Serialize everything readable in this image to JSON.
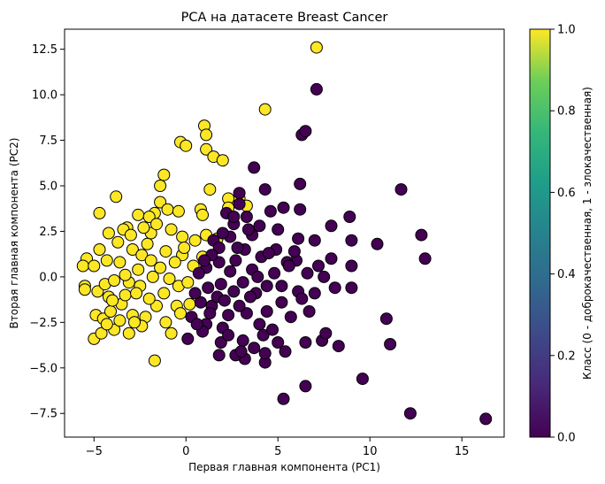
{
  "chart_data": {
    "type": "scatter",
    "title": "PCA на датасете Breast Cancer",
    "xlabel": "Первая главная компонента (PC1)",
    "ylabel": "Вторая главная компонента (PC2)",
    "xlim": [
      -6.6,
      17.3
    ],
    "ylim": [
      -8.8,
      13.6
    ],
    "xticks": [
      -5,
      0,
      5,
      10,
      15
    ],
    "yticks": [
      -7.5,
      -5.0,
      -2.5,
      0.0,
      2.5,
      5.0,
      7.5,
      10.0,
      12.5
    ],
    "grid": false,
    "colormap": "viridis",
    "colorbar": {
      "label": "Класс (0 - доброкачественная, 1 - злокачественная)",
      "range": [
        0.0,
        1.0
      ],
      "ticks": [
        0.0,
        0.2,
        0.4,
        0.6,
        0.8,
        1.0
      ]
    },
    "colors": {
      "class_0": "#440154",
      "class_1": "#fde725",
      "marker_edge": "#000000"
    },
    "series": [
      {
        "class_value": 1,
        "points": [
          [
            7.1,
            12.6
          ],
          [
            4.3,
            9.2
          ],
          [
            1.0,
            8.3
          ],
          [
            1.1,
            7.8
          ],
          [
            -0.3,
            7.4
          ],
          [
            0.0,
            7.2
          ],
          [
            1.1,
            7.0
          ],
          [
            1.5,
            6.6
          ],
          [
            2.0,
            6.4
          ],
          [
            -1.2,
            5.6
          ],
          [
            1.3,
            4.8
          ],
          [
            -1.4,
            5.0
          ],
          [
            2.9,
            4.3
          ],
          [
            2.3,
            4.3
          ],
          [
            -3.8,
            4.4
          ],
          [
            -1.4,
            4.1
          ],
          [
            2.3,
            3.8
          ],
          [
            3.3,
            3.9
          ],
          [
            -4.7,
            3.5
          ],
          [
            -2.6,
            3.4
          ],
          [
            -1.7,
            3.5
          ],
          [
            -1.0,
            3.7
          ],
          [
            -0.4,
            3.6
          ],
          [
            0.8,
            3.7
          ],
          [
            0.9,
            3.4
          ],
          [
            -2.0,
            3.3
          ],
          [
            -3.2,
            2.7
          ],
          [
            -4.2,
            2.4
          ],
          [
            -5.4,
            1.0
          ],
          [
            -4.7,
            1.5
          ],
          [
            -3.4,
            2.6
          ],
          [
            -1.9,
            2.4
          ],
          [
            -0.2,
            2.2
          ],
          [
            1.1,
            2.3
          ],
          [
            1.7,
            2.1
          ],
          [
            -5.6,
            0.6
          ],
          [
            -5.0,
            0.6
          ],
          [
            -4.3,
            0.9
          ],
          [
            -3.6,
            0.8
          ],
          [
            -2.9,
            1.5
          ],
          [
            -2.1,
            1.8
          ],
          [
            -1.1,
            1.4
          ],
          [
            -0.2,
            1.2
          ],
          [
            0.9,
            1.1
          ],
          [
            -5.5,
            -0.5
          ],
          [
            -5.5,
            -0.7
          ],
          [
            -4.8,
            -0.8
          ],
          [
            -4.4,
            -0.4
          ],
          [
            -3.9,
            -0.2
          ],
          [
            -3.1,
            -0.3
          ],
          [
            -2.5,
            -0.5
          ],
          [
            -1.8,
            0.0
          ],
          [
            -0.9,
            -0.1
          ],
          [
            -0.4,
            -0.5
          ],
          [
            0.1,
            -0.3
          ],
          [
            -4.9,
            -2.1
          ],
          [
            -4.5,
            -2.3
          ],
          [
            -4.1,
            -1.9
          ],
          [
            -3.5,
            -1.5
          ],
          [
            -2.9,
            -2.1
          ],
          [
            -2.2,
            -2.2
          ],
          [
            -1.6,
            -1.6
          ],
          [
            -5.0,
            -3.4
          ],
          [
            -4.6,
            -3.1
          ],
          [
            -3.9,
            -2.9
          ],
          [
            -3.1,
            -3.1
          ],
          [
            -2.4,
            -2.7
          ],
          [
            -1.7,
            -4.6
          ],
          [
            -0.8,
            -3.1
          ],
          [
            -0.5,
            -1.6
          ],
          [
            0.2,
            -1.5
          ],
          [
            -4.2,
            -1.1
          ],
          [
            -3.3,
            -1.0
          ],
          [
            -2.7,
            -0.9
          ],
          [
            -1.2,
            -0.9
          ],
          [
            -3.7,
            1.9
          ],
          [
            -2.3,
            2.7
          ],
          [
            -1.6,
            2.9
          ],
          [
            -0.8,
            2.6
          ],
          [
            -3.0,
            2.3
          ],
          [
            0.4,
            0.6
          ],
          [
            -0.6,
            0.8
          ],
          [
            -2.6,
            0.4
          ],
          [
            -3.3,
            0.1
          ],
          [
            -4.0,
            -1.3
          ],
          [
            -2.0,
            -1.2
          ],
          [
            -0.3,
            -2.0
          ],
          [
            -1.1,
            -2.5
          ],
          [
            -2.8,
            -2.5
          ],
          [
            -3.6,
            -2.4
          ],
          [
            -4.3,
            -2.6
          ],
          [
            -1.4,
            0.5
          ],
          [
            -0.1,
            1.6
          ],
          [
            0.5,
            2.0
          ],
          [
            -2.4,
            1.2
          ],
          [
            -1.9,
            0.9
          ]
        ]
      },
      {
        "class_value": 0,
        "points": [
          [
            7.1,
            10.3
          ],
          [
            6.3,
            7.8
          ],
          [
            6.5,
            8.0
          ],
          [
            3.7,
            6.0
          ],
          [
            4.3,
            4.8
          ],
          [
            2.9,
            4.6
          ],
          [
            11.7,
            4.8
          ],
          [
            6.2,
            5.1
          ],
          [
            2.9,
            4.0
          ],
          [
            3.3,
            3.3
          ],
          [
            4.6,
            3.6
          ],
          [
            5.3,
            3.8
          ],
          [
            6.2,
            3.7
          ],
          [
            8.9,
            3.3
          ],
          [
            7.9,
            2.8
          ],
          [
            12.8,
            2.3
          ],
          [
            9.0,
            2.0
          ],
          [
            10.4,
            1.8
          ],
          [
            13.0,
            1.0
          ],
          [
            4.0,
            2.8
          ],
          [
            5.0,
            2.6
          ],
          [
            6.1,
            2.1
          ],
          [
            7.0,
            2.0
          ],
          [
            7.9,
            1.0
          ],
          [
            9.0,
            0.6
          ],
          [
            7.2,
            0.6
          ],
          [
            6.0,
            0.9
          ],
          [
            5.5,
            0.8
          ],
          [
            4.1,
            1.1
          ],
          [
            3.2,
            1.5
          ],
          [
            2.4,
            2.2
          ],
          [
            2.0,
            2.4
          ],
          [
            1.5,
            2.0
          ],
          [
            2.7,
            0.9
          ],
          [
            1.8,
            0.8
          ],
          [
            1.1,
            0.5
          ],
          [
            0.7,
            0.2
          ],
          [
            1.9,
            -0.4
          ],
          [
            2.6,
            -0.8
          ],
          [
            3.1,
            -0.3
          ],
          [
            3.8,
            -0.9
          ],
          [
            4.4,
            -0.5
          ],
          [
            5.2,
            -0.5
          ],
          [
            6.1,
            -0.8
          ],
          [
            7.0,
            -0.9
          ],
          [
            8.1,
            -0.6
          ],
          [
            9.0,
            -0.6
          ],
          [
            6.7,
            -1.9
          ],
          [
            5.7,
            -2.2
          ],
          [
            4.4,
            -1.9
          ],
          [
            3.3,
            -2.0
          ],
          [
            2.3,
            -2.1
          ],
          [
            1.4,
            -1.6
          ],
          [
            0.8,
            -1.4
          ],
          [
            0.3,
            -2.2
          ],
          [
            1.1,
            -2.6
          ],
          [
            2.0,
            -2.8
          ],
          [
            3.1,
            -3.5
          ],
          [
            4.2,
            -3.2
          ],
          [
            5.0,
            -3.6
          ],
          [
            6.5,
            -3.6
          ],
          [
            7.4,
            -3.5
          ],
          [
            7.6,
            -3.1
          ],
          [
            8.3,
            -3.8
          ],
          [
            9.6,
            -5.6
          ],
          [
            10.9,
            -2.3
          ],
          [
            11.1,
            -3.7
          ],
          [
            12.2,
            -7.5
          ],
          [
            16.3,
            -7.8
          ],
          [
            5.3,
            -6.7
          ],
          [
            6.5,
            -6.0
          ],
          [
            4.3,
            -4.7
          ],
          [
            3.2,
            -4.5
          ],
          [
            2.7,
            -4.3
          ],
          [
            1.8,
            -4.3
          ],
          [
            1.9,
            -3.6
          ],
          [
            0.9,
            -3.0
          ],
          [
            0.1,
            -3.4
          ],
          [
            5.4,
            -4.1
          ],
          [
            2.6,
            2.9
          ],
          [
            3.6,
            2.3
          ],
          [
            4.9,
            1.5
          ],
          [
            5.9,
            1.4
          ],
          [
            2.2,
            3.5
          ],
          [
            1.8,
            1.6
          ],
          [
            3.6,
            0.4
          ],
          [
            4.8,
            0.2
          ],
          [
            6.6,
            0.2
          ],
          [
            2.4,
            0.3
          ],
          [
            1.2,
            -0.6
          ],
          [
            2.9,
            -1.6
          ],
          [
            4.0,
            -2.6
          ],
          [
            5.2,
            -1.4
          ],
          [
            6.3,
            -1.2
          ],
          [
            3.5,
            -1.1
          ],
          [
            1.7,
            -1.1
          ],
          [
            0.5,
            -0.9
          ],
          [
            2.3,
            -3.2
          ],
          [
            3.7,
            -3.9
          ],
          [
            4.7,
            -2.9
          ],
          [
            3.0,
            -4.1
          ],
          [
            1.3,
            -2.0
          ],
          [
            2.8,
            1.6
          ],
          [
            3.9,
            0.0
          ],
          [
            5.6,
            0.6
          ],
          [
            4.5,
            1.3
          ],
          [
            1.4,
            1.2
          ],
          [
            2.1,
            -1.3
          ],
          [
            0.6,
            -2.6
          ],
          [
            4.3,
            -4.2
          ],
          [
            1.0,
            0.9
          ],
          [
            3.4,
            2.6
          ],
          [
            2.6,
            3.3
          ],
          [
            7.5,
            0.0
          ]
        ]
      }
    ]
  }
}
